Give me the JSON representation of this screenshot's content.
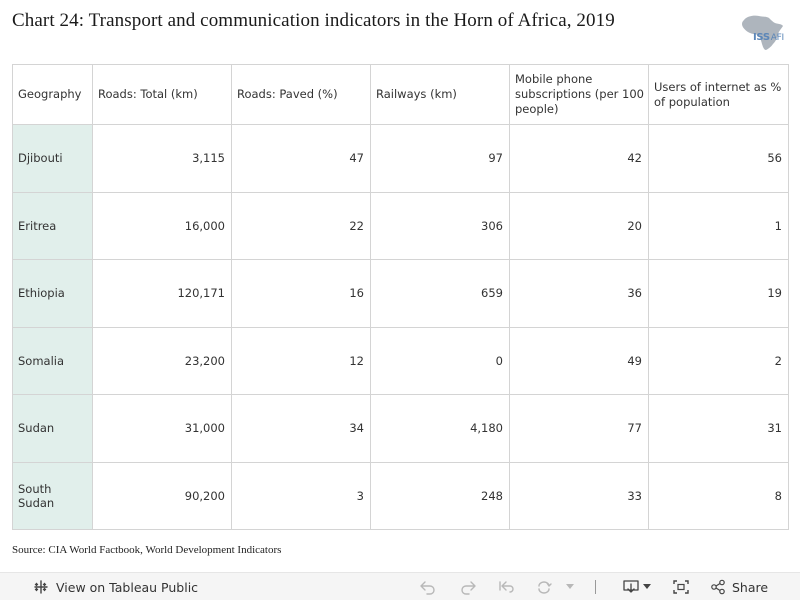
{
  "title": "Chart 24: Transport and communication indicators in the Horn of Africa, 2019",
  "logo": {
    "text": "ISS",
    "sub": "AFI"
  },
  "chart_data": {
    "type": "table",
    "title": "Chart 24: Transport and communication indicators in the Horn of Africa, 2019",
    "columns": [
      "Geography",
      "Roads: Total (km)",
      "Roads:  Paved (%)",
      "Railways (km)",
      "Mobile phone subscriptions (per 100 people)",
      "Users of internet as % of population"
    ],
    "rows": [
      [
        "Djibouti",
        "3,115",
        "47",
        "97",
        "42",
        "56"
      ],
      [
        "Eritrea",
        "16,000",
        "22",
        "306",
        "20",
        "1"
      ],
      [
        "Ethiopia",
        "120,171",
        "16",
        "659",
        "36",
        "19"
      ],
      [
        "Somalia",
        "23,200",
        "12",
        "0",
        "49",
        "2"
      ],
      [
        "Sudan",
        "31,000",
        "34",
        "4,180",
        "77",
        "31"
      ],
      [
        "South Sudan",
        "90,200",
        "3",
        "248",
        "33",
        "8"
      ]
    ]
  },
  "source": "Source: CIA World Factbook, World Development Indicators",
  "toolbar": {
    "view_label": "View on Tableau Public",
    "share_label": "Share"
  },
  "colors": {
    "geo_column_bg": "#e1efeb",
    "border": "#d4d4d4",
    "toolbar_bg": "#f5f5f5",
    "logo": "#5b86b8"
  }
}
